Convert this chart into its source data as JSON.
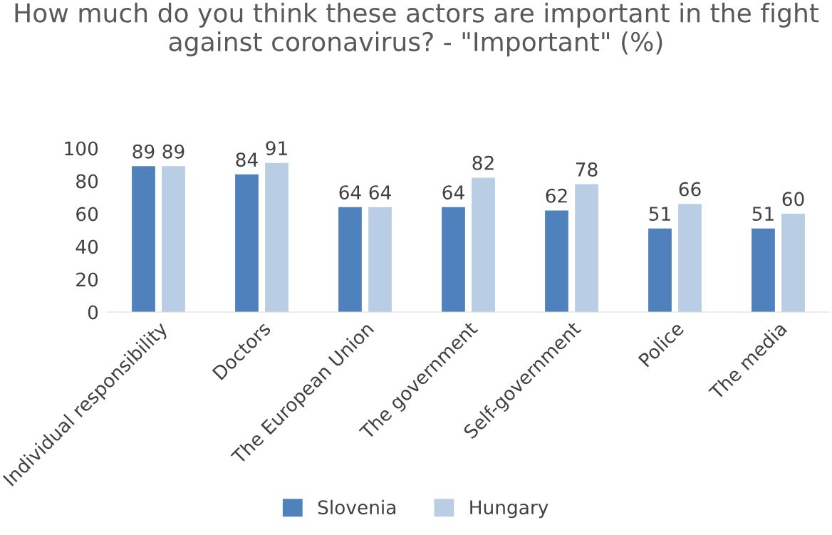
{
  "chart_data": {
    "type": "bar",
    "title": "How much do you think these actors are important in the fight against coronavirus? - \"Important\" (%)",
    "categories": [
      "Individual responsibility",
      "Doctors",
      "The European Union",
      "The government",
      "Self-government",
      "Police",
      "The media"
    ],
    "series": [
      {
        "name": "Slovenia",
        "color": "#4f81bd",
        "values": [
          89,
          84,
          64,
          64,
          62,
          51,
          51
        ]
      },
      {
        "name": "Hungary",
        "color": "#b9cde5",
        "values": [
          89,
          91,
          64,
          82,
          78,
          66,
          60
        ]
      }
    ],
    "ylim": [
      0,
      100
    ],
    "yticks": [
      0,
      20,
      40,
      60,
      80,
      100
    ],
    "grid": false,
    "legend": "bottom",
    "data_labels": true
  }
}
